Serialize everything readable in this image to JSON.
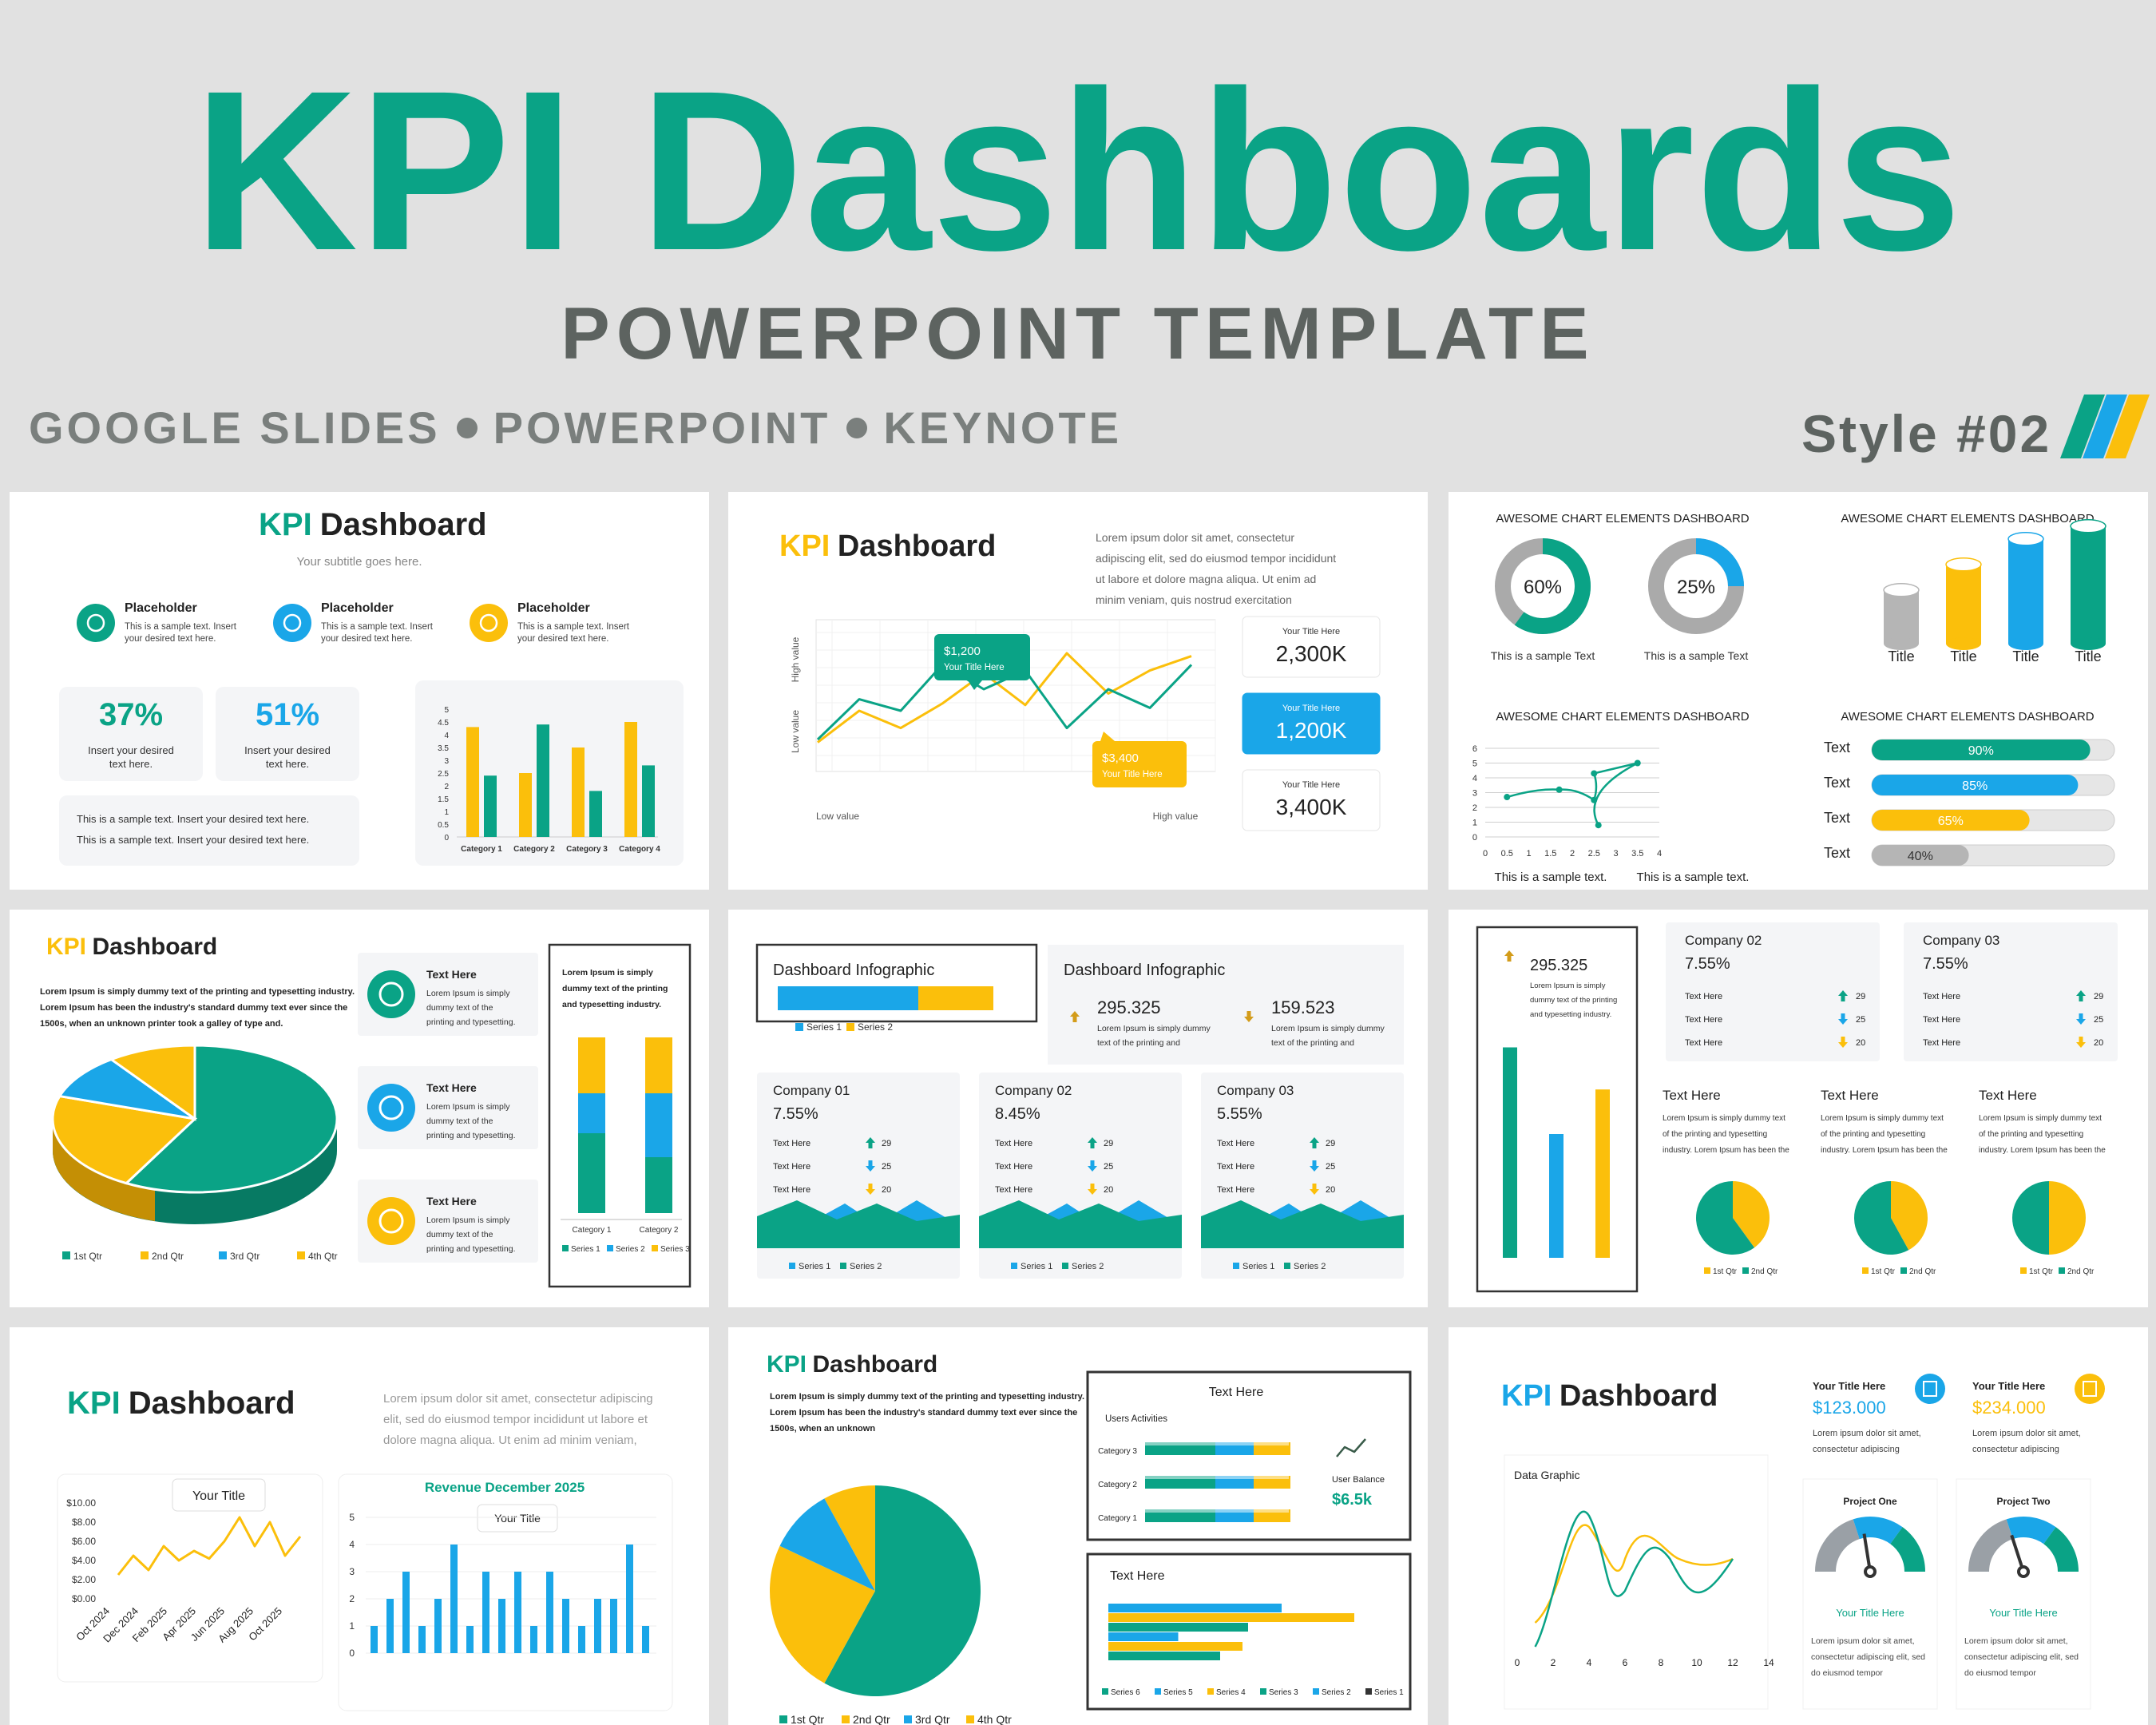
{
  "header": {
    "title": "KPI Dashboards",
    "subtitle": "POWERPOINT TEMPLATE",
    "platforms": [
      "GOOGLE SLIDES",
      "POWERPOINT",
      "KEYNOTE"
    ],
    "style_label": "Style #02"
  },
  "colors": {
    "teal": "#0aa386",
    "blue": "#1aa6e8",
    "yellow": "#fbbf0b",
    "gray": "#b5b5b5",
    "dark": "#222222"
  },
  "s1": {
    "kpi": "KPI",
    "title": "Dashboard",
    "subtitle": "Your subtitle goes here.",
    "placeholders": [
      {
        "title": "Placeholder",
        "text1": "This is a sample text. Insert",
        "text2": "your desired text here.",
        "icon": "search-icon"
      },
      {
        "title": "Placeholder",
        "text1": "This is a sample text. Insert",
        "text2": "your desired text here.",
        "icon": "book-icon"
      },
      {
        "title": "Placeholder",
        "text1": "This is a sample text. Insert",
        "text2": "your desired text here.",
        "icon": "flask-icon"
      }
    ],
    "stats": [
      {
        "value": "37%",
        "l1": "Insert your desired",
        "l2": "text here."
      },
      {
        "value": "51%",
        "l1": "Insert your desired",
        "l2": "text here."
      }
    ],
    "note1": "This is a sample text. Insert your desired text here.",
    "note2": "This is a sample text. Insert your desired text here.",
    "chart": {
      "categories": [
        "Category 1",
        "Category 2",
        "Category 3",
        "Category 4"
      ],
      "series_yellow": [
        4.3,
        2.5,
        3.5,
        4.5
      ],
      "series_teal": [
        2.4,
        4.4,
        1.8,
        2.8
      ],
      "yticks": [
        "0",
        "0.5",
        "1",
        "1.5",
        "2",
        "2.5",
        "3",
        "3.5",
        "4",
        "4.5",
        "5"
      ]
    }
  },
  "s2": {
    "kpi": "KPI",
    "title": "Dashboard",
    "lorem": [
      "Lorem ipsum dolor sit amet, consectetur",
      "adipiscing elit, sed do eiusmod tempor incididunt",
      "ut labore et dolore magna aliqua. Ut enim ad",
      "minim veniam, quis nostrud exercitation"
    ],
    "callout1": {
      "value": "$1,200",
      "label": "Your Title Here"
    },
    "callout2": {
      "value": "$3,400",
      "label": "Your Title Here"
    },
    "ylabel_high": "High value",
    "ylabel_low": "Low value",
    "xlabel_low": "Low value",
    "xlabel_high": "High value",
    "teal_line": [
      20,
      48,
      40,
      72,
      55,
      68,
      28,
      55,
      42,
      72
    ],
    "yellow_line": [
      18,
      40,
      28,
      45,
      66,
      44,
      80,
      52,
      68,
      78
    ],
    "cards": [
      {
        "label": "Your Title Here",
        "value": "2,300K"
      },
      {
        "label": "Your Title Here",
        "value": "1,200K"
      },
      {
        "label": "Your Title Here",
        "value": "3,400K"
      }
    ]
  },
  "s3": {
    "heading": "AWESOME CHART ELEMENTS DASHBOARD",
    "donut1": {
      "value": "60%",
      "fraction": 0.6,
      "caption": "This is a sample Text"
    },
    "donut2": {
      "value": "25%",
      "fraction": 0.25,
      "caption": "This is a sample Text"
    },
    "cylinders": [
      {
        "label": "Title",
        "level": 0.42
      },
      {
        "label": "Title",
        "level": 0.62
      },
      {
        "label": "Title",
        "level": 0.82
      },
      {
        "label": "Title",
        "level": 0.92
      }
    ],
    "scatter": {
      "points": [
        [
          0.5,
          2.7
        ],
        [
          1.7,
          3.2
        ],
        [
          2.5,
          2.5
        ],
        [
          2.5,
          4.3
        ],
        [
          3.5,
          5.0
        ],
        [
          2.6,
          0.8
        ]
      ],
      "xticks": [
        "0",
        "0.5",
        "1",
        "1.5",
        "2",
        "2.5",
        "3",
        "3.5",
        "4"
      ],
      "yticks": [
        "0",
        "1",
        "2",
        "3",
        "4",
        "5",
        "6"
      ]
    },
    "captions": [
      "This is a sample text.",
      "This is a sample text."
    ],
    "progress": [
      {
        "label": "Text",
        "value": "90%",
        "fraction": 0.9
      },
      {
        "label": "Text",
        "value": "85%",
        "fraction": 0.85
      },
      {
        "label": "Text",
        "value": "65%",
        "fraction": 0.65
      },
      {
        "label": "Text",
        "value": "40%",
        "fraction": 0.4
      }
    ]
  },
  "s4": {
    "kpi": "KPI",
    "title": "Dashboard",
    "body": [
      "Lorem Ipsum is simply dummy text of the printing and typesetting industry.",
      "Lorem Ipsum has been the industry's standard dummy text ever since the",
      "1500s, when an unknown printer took a galley of type and."
    ],
    "pie": [
      58,
      22,
      10,
      10
    ],
    "legend": [
      "1st Qtr",
      "2nd Qtr",
      "3rd Qtr",
      "4th Qtr"
    ],
    "items": [
      {
        "title": "Text Here",
        "lines": [
          "Lorem Ipsum is simply",
          "dummy text of the",
          "printing and typesetting."
        ],
        "icon": "target-icon"
      },
      {
        "title": "Text Here",
        "lines": [
          "Lorem Ipsum is simply",
          "dummy text of the",
          "printing and typesetting."
        ],
        "icon": "hourglass-icon"
      },
      {
        "title": "Text Here",
        "lines": [
          "Lorem Ipsum is simply",
          "dummy text of the",
          "printing and typesetting."
        ],
        "icon": "crosshair-icon"
      }
    ],
    "box_text": [
      "Lorem Ipsum is simply",
      "dummy text of the printing",
      "and typesetting industry."
    ],
    "stack_categories": [
      "Category 1",
      "Category 2"
    ],
    "stack_series": [
      "Series 1",
      "Series 2",
      "Series 3"
    ]
  },
  "s5": {
    "infographic": "Dashboard Infographic",
    "bar_series": [
      "Series 1",
      "Series 2"
    ],
    "stats": [
      {
        "value": "295.325",
        "l1": "Lorem Ipsum is simply dummy",
        "l2": "text of the printing and"
      },
      {
        "value": "159.523",
        "l1": "Lorem Ipsum is simply dummy",
        "l2": "text of the printing and"
      }
    ],
    "companies": [
      {
        "name": "Company 01",
        "pct": "7.55%",
        "rows": [
          {
            "label": "Text Here",
            "value": "29"
          },
          {
            "label": "Text Here",
            "value": "25"
          },
          {
            "label": "Text Here",
            "value": "20"
          }
        ]
      },
      {
        "name": "Company 02",
        "pct": "8.45%",
        "rows": [
          {
            "label": "Text Here",
            "value": "29"
          },
          {
            "label": "Text Here",
            "value": "25"
          },
          {
            "label": "Text Here",
            "value": "20"
          }
        ]
      },
      {
        "name": "Company 03",
        "pct": "5.55%",
        "rows": [
          {
            "label": "Text Here",
            "value": "29"
          },
          {
            "label": "Text Here",
            "value": "25"
          },
          {
            "label": "Text Here",
            "value": "20"
          }
        ]
      }
    ],
    "legend": [
      "Series 1",
      "Series 2"
    ]
  },
  "s6": {
    "big_value": "295.325",
    "big_text": [
      "Lorem Ipsum is simply",
      "dummy text of the printing",
      "and typesetting industry."
    ],
    "bars": [
      0.85,
      0.5,
      0.68
    ],
    "companies": [
      {
        "name": "Company 02",
        "pct": "7.55%",
        "rows": [
          {
            "label": "Text Here",
            "value": "29"
          },
          {
            "label": "Text Here",
            "value": "25"
          },
          {
            "label": "Text Here",
            "value": "20"
          }
        ]
      },
      {
        "name": "Company 03",
        "pct": "7.55%",
        "rows": [
          {
            "label": "Text Here",
            "value": "29"
          },
          {
            "label": "Text Here",
            "value": "25"
          },
          {
            "label": "Text Here",
            "value": "20"
          }
        ]
      }
    ],
    "columns": [
      {
        "title": "Text Here",
        "lines": [
          "Lorem Ipsum is simply dummy text",
          "of the printing and typesetting",
          "industry. Lorem Ipsum has been the"
        ],
        "pie": [
          0.4,
          0.6
        ]
      },
      {
        "title": "Text Here",
        "lines": [
          "Lorem Ipsum is simply dummy text",
          "of the printing and typesetting",
          "industry. Lorem Ipsum has been the"
        ],
        "pie": [
          0.42,
          0.58
        ]
      },
      {
        "title": "Text Here",
        "lines": [
          "Lorem Ipsum is simply dummy text",
          "of the printing and typesetting",
          "industry. Lorem Ipsum has been the"
        ],
        "pie": [
          0.5,
          0.5
        ]
      }
    ],
    "legend": [
      "1st Qtr",
      "2nd Qtr"
    ]
  },
  "s7": {
    "kpi": "KPI",
    "title": "Dashboard",
    "lorem": [
      "Lorem ipsum dolor sit amet, consectetur adipiscing",
      "elit, sed do eiusmod tempor incididunt ut labore et",
      "dolore magna aliqua. Ut enim ad minim veniam,"
    ],
    "tooltip1": "Your Title",
    "yticks": [
      "$0.00",
      "$2.00",
      "$4.00",
      "$6.00",
      "$8.00",
      "$10.00"
    ],
    "xticks": [
      "Oct 2024",
      "Dec 2024",
      "Feb 2025",
      "Apr 2025",
      "Jun 2025",
      "Aug 2025",
      "Oct 2025"
    ],
    "line": [
      2.5,
      4.5,
      3,
      5.5,
      4,
      5,
      4.2,
      6,
      8.5,
      5.5,
      8,
      4.5,
      6.5
    ],
    "bar_title": "Revenue December 2025",
    "tooltip2": "Your Title",
    "bar_yticks": [
      "0",
      "1",
      "2",
      "3",
      "4",
      "5"
    ],
    "bars": [
      1,
      2,
      3,
      1,
      2,
      4,
      1,
      3,
      2,
      3,
      1,
      3,
      2,
      1,
      2,
      2,
      4,
      1
    ]
  },
  "s8": {
    "kpi": "KPI",
    "title": "Dashboard",
    "body": [
      "Lorem Ipsum is simply dummy text of the printing and typesetting industry.",
      "Lorem Ipsum has been the industry's standard dummy text ever since the",
      "1500s, when an unknown"
    ],
    "pie": [
      58,
      24,
      10,
      8
    ],
    "legend": [
      "1st Qtr",
      "2nd Qtr",
      "3rd Qtr",
      "4th Qtr"
    ],
    "box1_title": "Text Here",
    "users": "Users Activities",
    "categories": [
      "Category 3",
      "Category 2",
      "Category 1"
    ],
    "balance_label": "User Balance",
    "balance_value": "$6.5k",
    "box2_title": "Text Here",
    "hbars": [
      0.62,
      0.88,
      0.5,
      0.25,
      0.48,
      0.4
    ],
    "series_legend": [
      "Series 6",
      "Series 5",
      "Series 4",
      "Series 3",
      "Series 2",
      "Series 1"
    ]
  },
  "s9": {
    "kpi": "KPI",
    "title": "Dashboard",
    "data_graphic": "Data Graphic",
    "xticks": [
      "0",
      "2",
      "4",
      "6",
      "8",
      "10",
      "12",
      "14"
    ],
    "card1": {
      "label": "Your Title Here",
      "value": "$123.000",
      "l1": "Lorem ipsum dolor sit amet,",
      "l2": "consectetur adipiscing"
    },
    "card2": {
      "label": "Your Title Here",
      "value": "$234.000",
      "l1": "Lorem ipsum dolor sit amet,",
      "l2": "consectetur adipiscing"
    },
    "gauges": [
      {
        "title": "Project One",
        "caption": "Your Title Here",
        "lines": [
          "Lorem ipsum dolor sit amet,",
          "consectetur adipiscing elit, sed",
          "do eiusmod tempor"
        ],
        "level": 0.45
      },
      {
        "title": "Project Two",
        "caption": "Your Title Here",
        "lines": [
          "Lorem ipsum dolor sit amet,",
          "consectetur adipiscing elit, sed",
          "do eiusmod tempor"
        ],
        "level": 0.4
      }
    ]
  }
}
